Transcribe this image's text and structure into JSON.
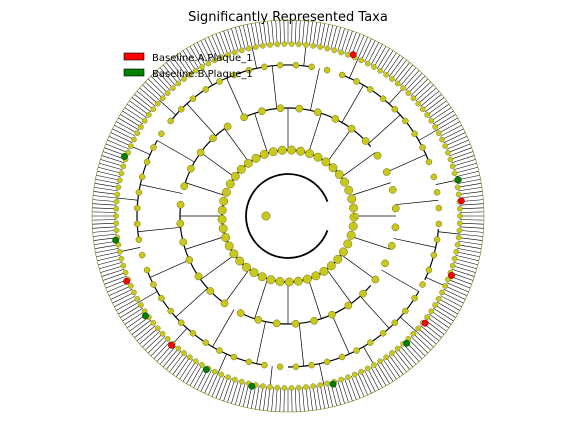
{
  "figure": {
    "title": "Significantly Represented Taxa",
    "legend": [
      {
        "label": "Baseline.A.Plaque_1",
        "color": "#ff0000"
      },
      {
        "label": "Baseline.B.Plaque_1",
        "color": "#008000"
      }
    ]
  },
  "style": {
    "node_color": "#c8c81e",
    "node_edge": "#6e6e0a",
    "branch_color": "#000000"
  }
}
